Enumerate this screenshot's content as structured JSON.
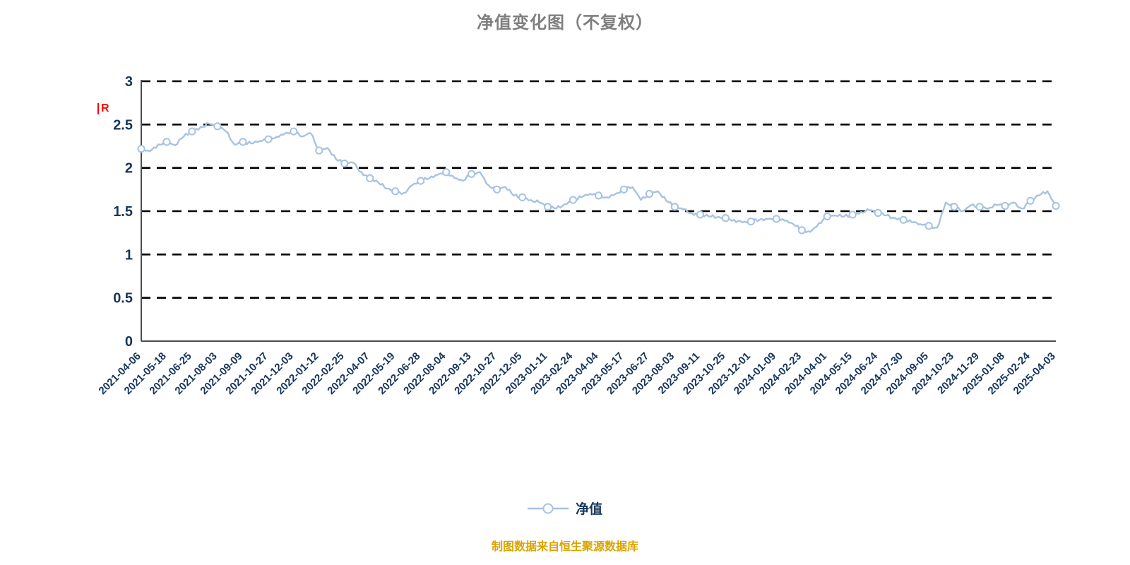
{
  "title": "净值变化图（不复权）",
  "y_axis_unit_label": "R",
  "legend": {
    "label": "净值"
  },
  "caption": "制图数据来自恒生聚源数据库",
  "colors": {
    "line": "#a6c3e2",
    "marker_fill": "#ffffff",
    "grid": "#000000",
    "axis": "#4d4d4d",
    "tick_text": "#17365d",
    "title_text": "#7f7f7f",
    "caption_text": "#d9a400",
    "unit_text": "#ff0000"
  },
  "chart_data": {
    "type": "line",
    "title": "净值变化图（不复权）",
    "x_tick_labels": [
      "2021-04-06",
      "2021-05-18",
      "2021-06-25",
      "2021-08-03",
      "2021-09-09",
      "2021-10-27",
      "2021-12-03",
      "2022-01-12",
      "2022-02-25",
      "2022-04-07",
      "2022-05-19",
      "2022-06-28",
      "2022-08-04",
      "2022-09-13",
      "2022-10-27",
      "2022-12-05",
      "2023-01-11",
      "2023-02-24",
      "2023-04-04",
      "2023-05-17",
      "2023-06-27",
      "2023-08-03",
      "2023-09-11",
      "2023-10-25",
      "2023-12-01",
      "2024-01-09",
      "2024-02-23",
      "2024-04-01",
      "2024-05-15",
      "2024-06-24",
      "2024-07-30",
      "2024-09-05",
      "2024-10-23",
      "2024-11-29",
      "2025-01-08",
      "2025-02-24",
      "2025-04-03"
    ],
    "points_per_tick": 3,
    "series": [
      {
        "name": "净值",
        "values": [
          2.22,
          2.19,
          2.27,
          2.3,
          2.26,
          2.36,
          2.42,
          2.47,
          2.51,
          2.48,
          2.42,
          2.27,
          2.3,
          2.28,
          2.31,
          2.33,
          2.36,
          2.4,
          2.42,
          2.36,
          2.4,
          2.2,
          2.23,
          2.1,
          2.05,
          2.06,
          1.95,
          1.88,
          1.83,
          1.76,
          1.73,
          1.71,
          1.8,
          1.85,
          1.88,
          1.92,
          1.95,
          1.88,
          1.85,
          1.93,
          1.95,
          1.8,
          1.75,
          1.78,
          1.68,
          1.66,
          1.63,
          1.6,
          1.55,
          1.53,
          1.58,
          1.63,
          1.66,
          1.7,
          1.68,
          1.66,
          1.7,
          1.75,
          1.78,
          1.63,
          1.7,
          1.73,
          1.62,
          1.55,
          1.52,
          1.48,
          1.46,
          1.44,
          1.43,
          1.42,
          1.4,
          1.37,
          1.38,
          1.4,
          1.41,
          1.41,
          1.39,
          1.35,
          1.28,
          1.26,
          1.36,
          1.44,
          1.45,
          1.44,
          1.46,
          1.49,
          1.51,
          1.48,
          1.45,
          1.42,
          1.4,
          1.37,
          1.35,
          1.33,
          1.31,
          1.6,
          1.55,
          1.5,
          1.57,
          1.55,
          1.53,
          1.57,
          1.56,
          1.6,
          1.53,
          1.62,
          1.68,
          1.73,
          1.56
        ]
      }
    ],
    "y_ticks": [
      0,
      0.5,
      1,
      1.5,
      2,
      2.5,
      3
    ],
    "ylim": [
      0,
      3
    ],
    "grid": "horizontal-dashed",
    "legend_position": "bottom-center",
    "marker_every": 3
  }
}
